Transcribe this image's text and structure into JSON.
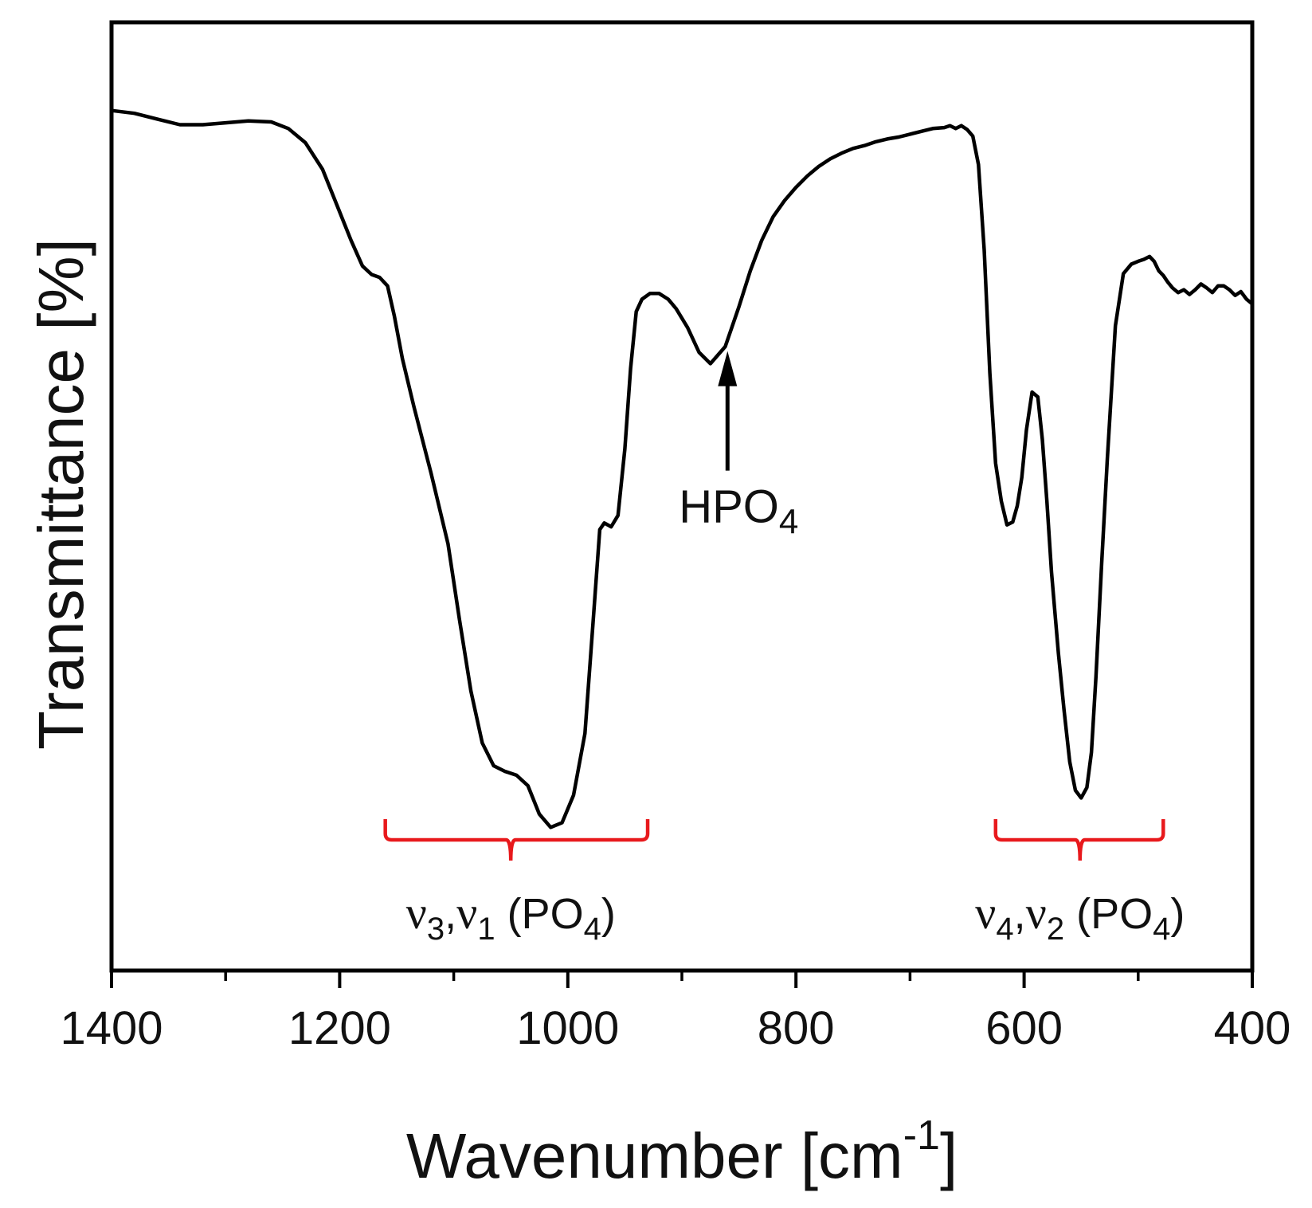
{
  "chart_data": {
    "type": "line",
    "title": "",
    "xlabel": "Wavenumber",
    "xlabel_unit_prefix": "[cm",
    "xlabel_unit_exp": "-1",
    "xlabel_unit_suffix": "]",
    "ylabel": "Transmittance [%]",
    "xlim": [
      1400,
      400
    ],
    "x_reversed": true,
    "ylim": [
      0,
      100
    ],
    "y_ticks_shown": false,
    "x_ticks": [
      "1400",
      "1200",
      "1000",
      "800",
      "600",
      "400"
    ],
    "x_tick_values": [
      1400,
      1200,
      1000,
      800,
      600,
      400
    ],
    "x_minor_tick_values": [
      1300,
      1100,
      900,
      700,
      500
    ],
    "series": [
      {
        "name": "spectrum",
        "color": "#000000",
        "x": [
          1400,
          1380,
          1360,
          1340,
          1320,
          1300,
          1280,
          1260,
          1245,
          1230,
          1215,
          1200,
          1190,
          1180,
          1172,
          1165,
          1158,
          1152,
          1145,
          1135,
          1120,
          1105,
          1095,
          1085,
          1075,
          1065,
          1055,
          1045,
          1035,
          1025,
          1015,
          1005,
          995,
          985,
          978,
          972,
          968,
          962,
          956,
          950,
          945,
          940,
          935,
          928,
          920,
          912,
          905,
          895,
          885,
          875,
          862,
          850,
          840,
          830,
          820,
          810,
          800,
          790,
          780,
          770,
          760,
          750,
          740,
          730,
          720,
          710,
          700,
          690,
          680,
          670,
          665,
          660,
          655,
          650,
          645,
          640,
          635,
          630,
          625,
          620,
          615,
          610,
          606,
          602,
          598,
          593,
          588,
          584,
          580,
          576,
          570,
          565,
          560,
          555,
          550,
          545,
          541,
          537,
          532,
          527,
          520,
          513,
          506,
          500,
          495,
          490,
          486,
          482,
          478,
          474,
          470,
          465,
          460,
          455,
          450,
          445,
          440,
          435,
          430,
          425,
          420,
          415,
          410,
          405,
          400
        ],
        "values": [
          90.7,
          90.4,
          89.8,
          89.2,
          89.2,
          89.4,
          89.6,
          89.5,
          88.8,
          87.3,
          84.5,
          80.0,
          77.0,
          74.3,
          73.4,
          73.1,
          72.2,
          69.0,
          64.5,
          59.5,
          52.5,
          45.0,
          37.0,
          29.5,
          24.0,
          21.6,
          21.0,
          20.6,
          19.5,
          16.5,
          15.1,
          15.6,
          18.5,
          25.0,
          36.5,
          46.5,
          47.2,
          46.8,
          48.0,
          55.0,
          63.5,
          69.5,
          70.8,
          71.4,
          71.4,
          70.8,
          69.8,
          67.8,
          65.2,
          64.0,
          65.8,
          70.0,
          73.8,
          77.0,
          79.5,
          81.2,
          82.6,
          83.8,
          84.8,
          85.6,
          86.2,
          86.7,
          87.0,
          87.4,
          87.7,
          87.9,
          88.2,
          88.5,
          88.8,
          88.9,
          89.1,
          88.8,
          89.1,
          88.7,
          88.0,
          85.0,
          76.0,
          63.0,
          53.5,
          49.5,
          47.0,
          47.3,
          49.0,
          52.0,
          57.0,
          61.0,
          60.5,
          56.0,
          49.5,
          42.0,
          33.5,
          27.5,
          22.0,
          19.0,
          18.2,
          19.3,
          23.0,
          31.0,
          43.0,
          54.0,
          68.0,
          73.5,
          74.5,
          74.8,
          75.0,
          75.3,
          74.8,
          73.8,
          73.3,
          72.6,
          72.0,
          71.5,
          71.8,
          71.3,
          71.8,
          72.4,
          72.0,
          71.5,
          72.2,
          72.2,
          71.8,
          71.2,
          71.6,
          70.8,
          70.3
        ]
      }
    ],
    "annotations": [
      {
        "name": "hpo4",
        "text": "HPO",
        "subscript": "4",
        "x": 860
      },
      {
        "name": "v3v1-bracket",
        "x_start": 1160,
        "x_end": 930,
        "x_center": 1050,
        "color": "#e8191c",
        "nu_a": "ν",
        "sub_a": "3",
        "sep": ",",
        "nu_b": "ν",
        "sub_b": "1",
        "group_open": " (PO",
        "group_sub": "4",
        "group_close": ")"
      },
      {
        "name": "v4v2-bracket",
        "x_start": 625,
        "x_end": 478,
        "x_center": 551,
        "color": "#e8191c",
        "nu_a": "ν",
        "sub_a": "4",
        "sep": ",",
        "nu_b": "ν",
        "sub_b": "2",
        "group_open": " (PO",
        "group_sub": "4",
        "group_close": ")"
      }
    ]
  }
}
